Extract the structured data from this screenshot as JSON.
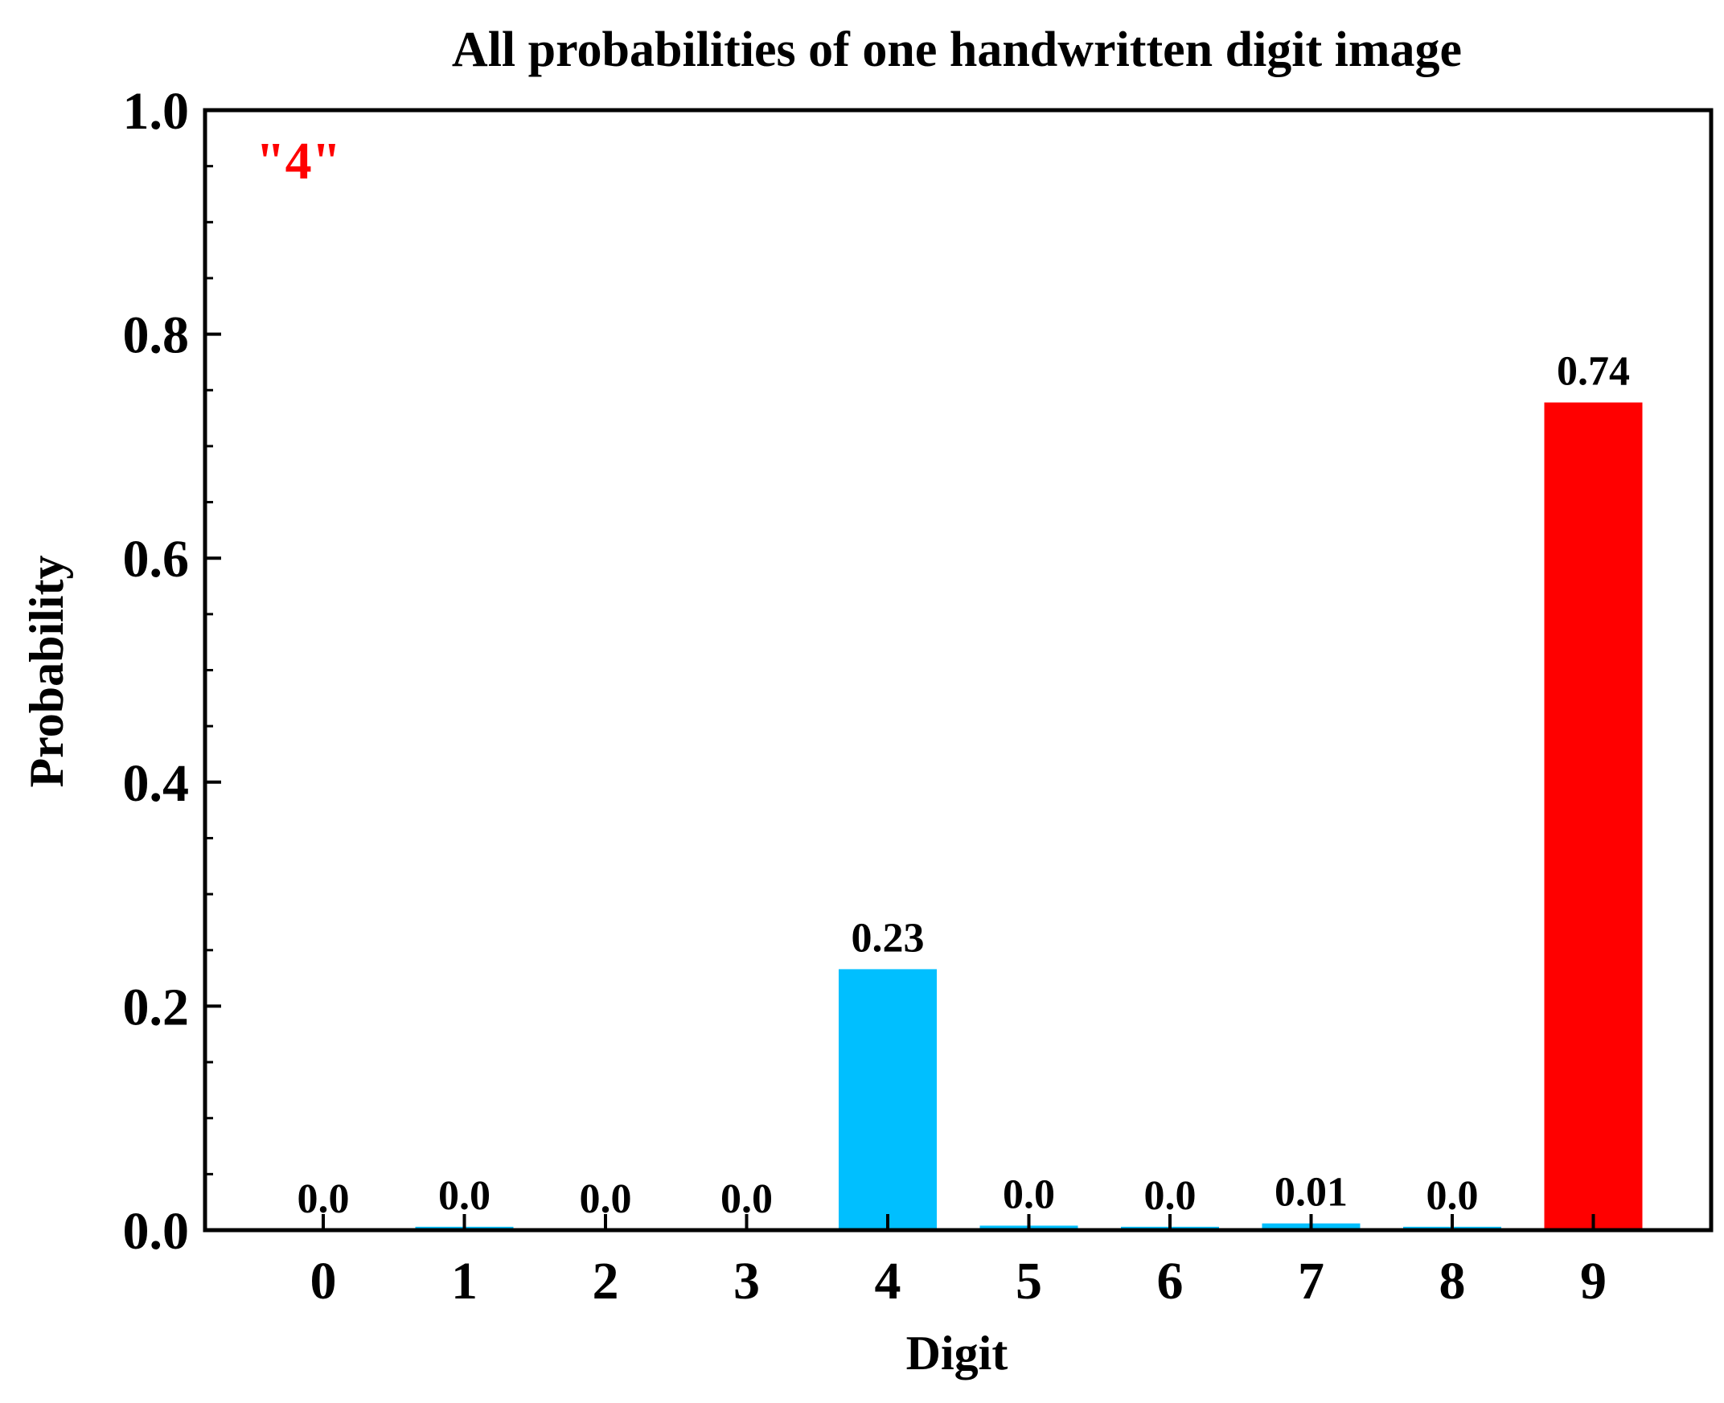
{
  "chart_data": {
    "type": "bar",
    "title": "All probabilities of one handwritten digit image",
    "xlabel": "Digit",
    "ylabel": "Probability",
    "categories": [
      "0",
      "1",
      "2",
      "3",
      "4",
      "5",
      "6",
      "7",
      "8",
      "9"
    ],
    "values": [
      0.0,
      0.003,
      0.0,
      0.0,
      0.233,
      0.004,
      0.003,
      0.006,
      0.003,
      0.739
    ],
    "value_labels": [
      "0.0",
      "0.0",
      "0.0",
      "0.0",
      "0.23",
      "0.0",
      "0.0",
      "0.01",
      "0.0",
      "0.74"
    ],
    "ylim": [
      0,
      1.0
    ],
    "yticks": [
      "0.0",
      "0.2",
      "0.4",
      "0.6",
      "0.8",
      "1.0"
    ],
    "annotation": "\"4\"",
    "colors": {
      "bar_default": "#00BFFF",
      "bar_highlight": "#FF0000",
      "annotation": "#FF0000"
    },
    "highlight_index": 9,
    "grid": false
  }
}
